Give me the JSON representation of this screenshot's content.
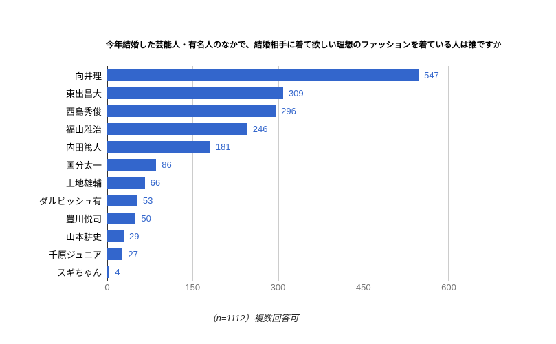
{
  "title": "今年結婚した芸能人・有名人のなかで、結婚相手に着て欲しい理想のファッションを着ている人は誰ですか",
  "footnote": "（n=1112）複数回答可",
  "chart_data": {
    "type": "bar",
    "orientation": "horizontal",
    "title": "今年結婚した芸能人・有名人のなかで、結婚相手に着て欲しい理想のファッションを着ている人は誰ですか",
    "categories": [
      "向井理",
      "東出昌大",
      "西島秀俊",
      "福山雅治",
      "内田篤人",
      "国分太一",
      "上地雄輔",
      "ダルビッシュ有",
      "豊川悦司",
      "山本耕史",
      "千原ジュニア",
      "スギちゃん"
    ],
    "values": [
      547,
      309,
      296,
      246,
      181,
      86,
      66,
      53,
      50,
      29,
      27,
      4
    ],
    "xlabel": "",
    "ylabel": "",
    "xlim": [
      0,
      600
    ],
    "xticks": [
      0,
      150,
      300,
      450,
      600
    ],
    "grid": true,
    "value_labels": true,
    "legend": "none",
    "annotation": "（n=1112）複数回答可"
  },
  "colors": {
    "bar": "#3366cc",
    "value_label": "#3366cc",
    "tick_label": "#757575",
    "gridline": "#cccccc",
    "axis_line": "#333333",
    "category_label": "#000000",
    "title": "#000000",
    "background": "#ffffff"
  }
}
